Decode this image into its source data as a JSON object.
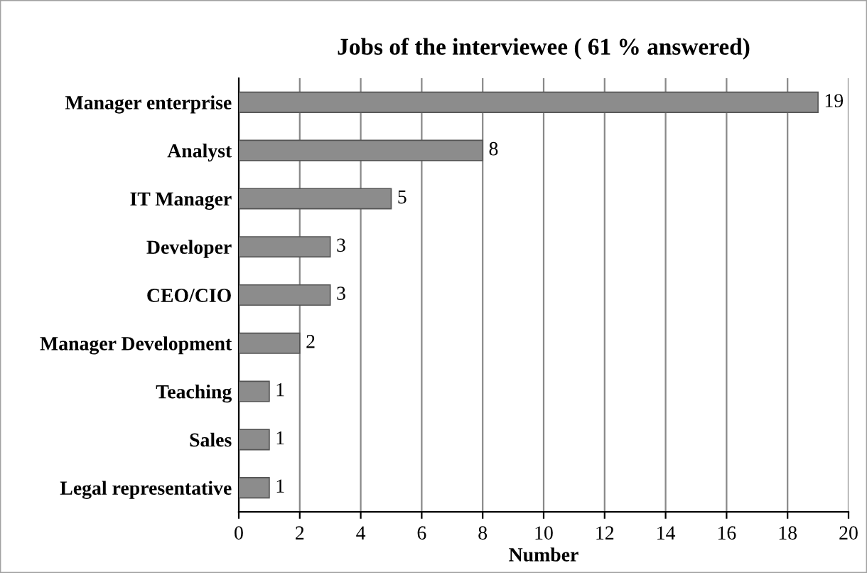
{
  "chart_data": {
    "type": "bar",
    "orientation": "horizontal",
    "title": "Jobs of the interviewee ( 61 % answered)",
    "xlabel": "Number",
    "categories": [
      "Manager enterprise",
      "Analyst",
      "IT Manager",
      "Developer",
      "CEO/CIO",
      "Manager Development",
      "Teaching",
      "Sales",
      "Legal representative"
    ],
    "values": [
      19,
      8,
      5,
      3,
      3,
      2,
      1,
      1,
      1
    ],
    "color": "#8c8c8c",
    "data_labels": true,
    "grid": "x",
    "xlim": [
      0,
      20
    ],
    "xticks": [
      0,
      2,
      4,
      6,
      8,
      10,
      12,
      14,
      16,
      18,
      20
    ]
  }
}
